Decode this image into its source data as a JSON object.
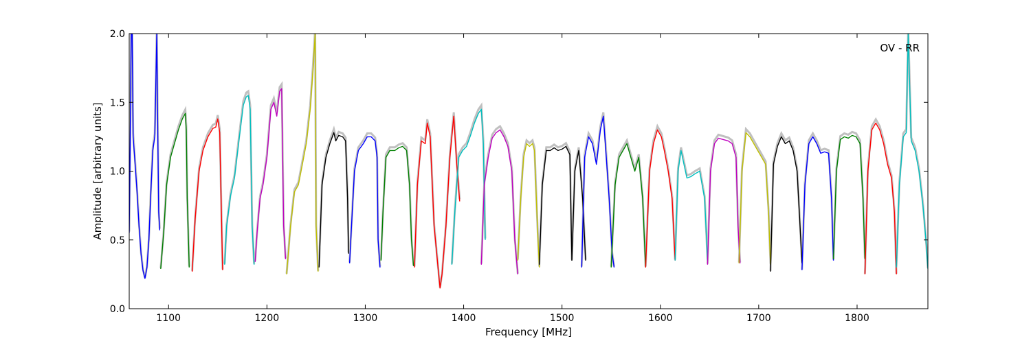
{
  "chart_data": {
    "type": "line",
    "title": "",
    "xlabel": "Frequency [MHz]",
    "ylabel": "Amplitude [arbitrary units]",
    "annotation": "OV - RR",
    "xlim": [
      1060,
      1872
    ],
    "ylim": [
      0.0,
      2.0
    ],
    "x_ticks": [
      1100,
      1200,
      1300,
      1400,
      1500,
      1600,
      1700,
      1800
    ],
    "y_ticks": [
      0.0,
      0.5,
      1.0,
      1.5,
      2.0
    ],
    "x_tick_labels": [
      "1100",
      "1200",
      "1300",
      "1400",
      "1500",
      "1600",
      "1700",
      "1800"
    ],
    "y_tick_labels": [
      "0.0",
      "0.5",
      "1.0",
      "1.5",
      "2.0"
    ],
    "grid": false,
    "colors": {
      "background": "#c0c0c0",
      "axes": "#000000"
    },
    "series": [
      {
        "color": "#0000ff",
        "x": [
          1060,
          1061,
          1062,
          1063,
          1064,
          1066,
          1068,
          1070,
          1072,
          1074,
          1076,
          1078,
          1080,
          1082,
          1084,
          1086,
          1087,
          1088,
          1089,
          1090,
          1091
        ],
        "y": [
          0.55,
          1.2,
          2.0,
          2.0,
          1.25,
          1.05,
          0.85,
          0.6,
          0.4,
          0.28,
          0.22,
          0.3,
          0.5,
          0.85,
          1.15,
          1.25,
          1.6,
          2.0,
          1.3,
          0.7,
          0.57
        ]
      },
      {
        "color": "#008000",
        "x": [
          1092,
          1095,
          1098,
          1102,
          1106,
          1110,
          1114,
          1117,
          1118,
          1119,
          1121
        ],
        "y": [
          0.29,
          0.55,
          0.9,
          1.1,
          1.2,
          1.3,
          1.38,
          1.42,
          1.3,
          0.8,
          0.3
        ]
      },
      {
        "color": "#ff0000",
        "x": [
          1124,
          1127,
          1131,
          1135,
          1140,
          1145,
          1148,
          1150,
          1152,
          1154,
          1155
        ],
        "y": [
          0.27,
          0.65,
          1.0,
          1.15,
          1.25,
          1.31,
          1.32,
          1.38,
          1.28,
          0.6,
          0.28
        ]
      },
      {
        "color": "#00bfbf",
        "x": [
          1157,
          1159,
          1163,
          1167,
          1172,
          1176,
          1179,
          1181,
          1183,
          1185,
          1187
        ],
        "y": [
          0.32,
          0.6,
          0.82,
          0.95,
          1.25,
          1.48,
          1.54,
          1.55,
          1.45,
          0.6,
          0.32
        ]
      },
      {
        "color": "#bf00bf",
        "x": [
          1188,
          1190,
          1193,
          1196,
          1200,
          1204,
          1207,
          1210,
          1213,
          1215,
          1217,
          1219
        ],
        "y": [
          0.34,
          0.55,
          0.8,
          0.9,
          1.1,
          1.45,
          1.5,
          1.4,
          1.58,
          1.6,
          0.6,
          0.36
        ]
      },
      {
        "color": "#bfbf00",
        "x": [
          1220,
          1224,
          1228,
          1232,
          1236,
          1240,
          1244,
          1247,
          1249,
          1250,
          1252
        ],
        "y": [
          0.25,
          0.6,
          0.85,
          0.9,
          1.05,
          1.2,
          1.45,
          1.75,
          2.0,
          0.6,
          0.27
        ]
      },
      {
        "color": "#000000",
        "x": [
          1253,
          1256,
          1260,
          1264,
          1268,
          1270,
          1273,
          1277,
          1280,
          1282,
          1283
        ],
        "y": [
          0.3,
          0.9,
          1.1,
          1.2,
          1.28,
          1.22,
          1.26,
          1.25,
          1.22,
          0.8,
          0.4
        ]
      },
      {
        "color": "#0000ff",
        "x": [
          1284,
          1286,
          1289,
          1293,
          1298,
          1302,
          1306,
          1310,
          1312,
          1313,
          1315
        ],
        "y": [
          0.33,
          0.6,
          1.0,
          1.15,
          1.2,
          1.25,
          1.25,
          1.22,
          1.1,
          0.5,
          0.3
        ]
      },
      {
        "color": "#008000",
        "x": [
          1316,
          1318,
          1321,
          1325,
          1330,
          1334,
          1338,
          1342,
          1345,
          1347,
          1349
        ],
        "y": [
          0.35,
          0.7,
          1.1,
          1.15,
          1.15,
          1.17,
          1.18,
          1.15,
          0.9,
          0.5,
          0.31
        ]
      },
      {
        "color": "#ff0000",
        "x": [
          1350,
          1353,
          1357,
          1361,
          1363,
          1366,
          1370,
          1374,
          1376,
          1378,
          1382,
          1386,
          1390,
          1393,
          1396
        ],
        "y": [
          0.3,
          0.9,
          1.22,
          1.2,
          1.35,
          1.25,
          0.6,
          0.3,
          0.15,
          0.25,
          0.6,
          1.1,
          1.4,
          1.05,
          0.78
        ]
      },
      {
        "color": "#00bfbf",
        "x": [
          1388,
          1391,
          1395,
          1399,
          1403,
          1407,
          1411,
          1415,
          1418,
          1420,
          1422
        ],
        "y": [
          0.32,
          0.7,
          1.1,
          1.15,
          1.18,
          1.26,
          1.35,
          1.42,
          1.45,
          1.2,
          0.5
        ]
      },
      {
        "color": "#bf00bf",
        "x": [
          1418,
          1421,
          1425,
          1429,
          1433,
          1437,
          1441,
          1445,
          1449,
          1452,
          1455
        ],
        "y": [
          0.32,
          0.9,
          1.1,
          1.24,
          1.28,
          1.3,
          1.25,
          1.18,
          1.0,
          0.5,
          0.25
        ]
      },
      {
        "color": "#bfbf00",
        "x": [
          1455,
          1458,
          1461,
          1464,
          1467,
          1470,
          1472,
          1475,
          1477
        ],
        "y": [
          0.35,
          0.8,
          1.1,
          1.2,
          1.18,
          1.2,
          1.15,
          0.6,
          0.3
        ]
      },
      {
        "color": "#000000",
        "x": [
          1477,
          1480,
          1484,
          1488,
          1492,
          1496,
          1500,
          1504,
          1508,
          1510
        ],
        "y": [
          0.32,
          0.9,
          1.15,
          1.15,
          1.17,
          1.15,
          1.16,
          1.18,
          1.12,
          0.35
        ]
      },
      {
        "color": "#000000",
        "x": [
          1510,
          1513,
          1517,
          1521,
          1524
        ],
        "y": [
          0.35,
          1.0,
          1.15,
          0.8,
          0.35
        ]
      },
      {
        "color": "#0000ff",
        "x": [
          1520,
          1523,
          1527,
          1531,
          1535,
          1539,
          1542,
          1545,
          1548,
          1551,
          1553
        ],
        "y": [
          0.3,
          1.1,
          1.25,
          1.2,
          1.05,
          1.3,
          1.4,
          1.1,
          0.8,
          0.4,
          0.3
        ]
      },
      {
        "color": "#008000",
        "x": [
          1550,
          1554,
          1558,
          1562,
          1566,
          1570,
          1574,
          1578,
          1582,
          1585
        ],
        "y": [
          0.3,
          0.9,
          1.1,
          1.15,
          1.2,
          1.1,
          1.0,
          1.1,
          0.8,
          0.3
        ]
      },
      {
        "color": "#ff0000",
        "x": [
          1585,
          1589,
          1593,
          1597,
          1601,
          1604,
          1608,
          1612,
          1615
        ],
        "y": [
          0.3,
          1.0,
          1.2,
          1.3,
          1.25,
          1.15,
          1.0,
          0.8,
          0.35
        ]
      },
      {
        "color": "#00bfbf",
        "x": [
          1615,
          1618,
          1621,
          1624,
          1627,
          1631,
          1635,
          1640,
          1645,
          1648
        ],
        "y": [
          0.35,
          1.0,
          1.15,
          1.05,
          0.95,
          0.96,
          0.98,
          1.0,
          0.8,
          0.35
        ]
      },
      {
        "color": "#bf00bf",
        "x": [
          1648,
          1651,
          1655,
          1659,
          1664,
          1669,
          1673,
          1677,
          1679,
          1681
        ],
        "y": [
          0.32,
          1.0,
          1.2,
          1.24,
          1.23,
          1.22,
          1.2,
          1.1,
          0.6,
          0.33
        ]
      },
      {
        "color": "#bfbf00",
        "x": [
          1680,
          1683,
          1687,
          1691,
          1695,
          1699,
          1703,
          1707,
          1710,
          1712
        ],
        "y": [
          0.33,
          1.0,
          1.28,
          1.25,
          1.2,
          1.15,
          1.1,
          1.05,
          0.7,
          0.32
        ]
      },
      {
        "color": "#000000",
        "x": [
          1712,
          1715,
          1719,
          1723,
          1727,
          1731,
          1735,
          1739,
          1742,
          1744
        ],
        "y": [
          0.27,
          1.05,
          1.18,
          1.25,
          1.2,
          1.22,
          1.15,
          1.0,
          0.6,
          0.33
        ]
      },
      {
        "color": "#0000ff",
        "x": [
          1744,
          1747,
          1751,
          1755,
          1759,
          1763,
          1767,
          1771,
          1774,
          1776
        ],
        "y": [
          0.28,
          0.9,
          1.2,
          1.25,
          1.2,
          1.13,
          1.14,
          1.13,
          0.8,
          0.35
        ]
      },
      {
        "color": "#008000",
        "x": [
          1776,
          1779,
          1783,
          1787,
          1791,
          1795,
          1799,
          1803,
          1806,
          1808
        ],
        "y": [
          0.36,
          1.0,
          1.23,
          1.25,
          1.24,
          1.26,
          1.25,
          1.2,
          0.8,
          0.36
        ]
      },
      {
        "color": "#ff0000",
        "x": [
          1808,
          1811,
          1815,
          1819,
          1823,
          1827,
          1831,
          1835,
          1838,
          1840
        ],
        "y": [
          0.25,
          1.0,
          1.3,
          1.35,
          1.3,
          1.2,
          1.05,
          0.95,
          0.7,
          0.25
        ]
      },
      {
        "color": "#00bfbf",
        "x": [
          1840,
          1843,
          1847,
          1850,
          1852,
          1855,
          1859,
          1863,
          1867,
          1870,
          1872
        ],
        "y": [
          0.3,
          0.9,
          1.25,
          1.28,
          2.0,
          1.22,
          1.15,
          1.0,
          0.75,
          0.5,
          0.29
        ]
      }
    ]
  }
}
